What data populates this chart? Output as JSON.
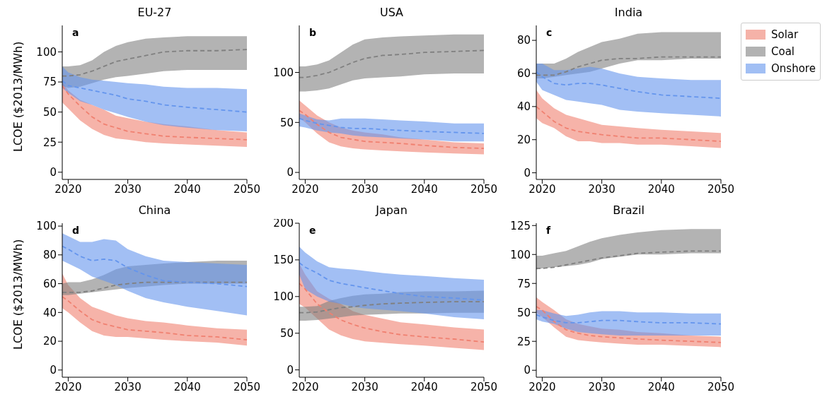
{
  "chart_data": [
    {
      "type": "line",
      "title": "EU-27",
      "ylabel": "LCOE ($2013/MWh)",
      "annotations": [
        "a"
      ],
      "line_style": "dashed",
      "x": [
        2019,
        2020,
        2022,
        2024,
        2026,
        2028,
        2030,
        2033,
        2036,
        2040,
        2045,
        2050
      ],
      "xlim": [
        2019,
        2050
      ],
      "xticks": [
        2020,
        2030,
        2040,
        2050
      ],
      "ylim": [
        -6,
        122
      ],
      "yticks": [
        0,
        25,
        50,
        75,
        100
      ],
      "series": [
        {
          "color": "#f08070",
          "values": [
            72,
            65,
            55,
            46,
            40,
            37,
            34,
            32,
            30,
            29,
            28,
            27
          ],
          "lower": [
            58,
            53,
            43,
            36,
            31,
            28,
            27,
            25,
            24,
            23,
            22,
            21
          ],
          "upper": [
            75,
            68,
            60,
            56,
            52,
            47,
            45,
            42,
            40,
            38,
            35,
            33
          ]
        },
        {
          "color": "#808080",
          "values": [
            80,
            80,
            81,
            84,
            88,
            92,
            94,
            97,
            100,
            101,
            101,
            102
          ],
          "lower": [
            72,
            70,
            71,
            74,
            77,
            79,
            80,
            82,
            84,
            85,
            85,
            85
          ],
          "upper": [
            88,
            88,
            89,
            93,
            100,
            105,
            108,
            111,
            112,
            113,
            113,
            113
          ]
        },
        {
          "color": "#6495ed",
          "values": [
            76,
            72,
            70,
            68,
            66,
            64,
            61,
            59,
            56,
            54,
            52,
            50
          ],
          "lower": [
            70,
            66,
            59,
            56,
            52,
            49,
            46,
            42,
            39,
            37,
            35,
            34
          ],
          "upper": [
            88,
            83,
            79,
            77,
            76,
            75,
            74,
            73,
            71,
            70,
            70,
            69
          ]
        }
      ]
    },
    {
      "type": "line",
      "title": "USA",
      "annotations": [
        "b"
      ],
      "line_style": "dashed",
      "x": [
        2019,
        2020,
        2022,
        2024,
        2026,
        2028,
        2030,
        2033,
        2036,
        2040,
        2045,
        2050
      ],
      "xlim": [
        2019,
        2050
      ],
      "xticks": [
        2020,
        2030,
        2040,
        2050
      ],
      "ylim": [
        -7,
        147
      ],
      "yticks": [
        0,
        50,
        100
      ],
      "series": [
        {
          "color": "#f08070",
          "values": [
            62,
            58,
            48,
            40,
            35,
            33,
            31,
            30,
            29,
            27,
            25,
            24
          ],
          "lower": [
            55,
            50,
            39,
            30,
            26,
            24,
            23,
            22,
            21,
            20,
            19,
            18
          ],
          "upper": [
            72,
            67,
            57,
            50,
            45,
            42,
            40,
            38,
            35,
            33,
            30,
            29
          ]
        },
        {
          "color": "#808080",
          "values": [
            95,
            95,
            97,
            100,
            105,
            110,
            114,
            117,
            118,
            120,
            121,
            122
          ],
          "lower": [
            81,
            81,
            82,
            84,
            88,
            92,
            94,
            95,
            96,
            98,
            99,
            99
          ],
          "upper": [
            106,
            106,
            108,
            112,
            120,
            128,
            133,
            135,
            136,
            137,
            138,
            138
          ]
        },
        {
          "color": "#6495ed",
          "values": [
            54,
            52,
            49,
            47,
            45,
            44,
            44,
            43,
            42,
            41,
            40,
            39
          ],
          "lower": [
            46,
            45,
            42,
            40,
            39,
            37,
            36,
            35,
            34,
            33,
            31,
            31
          ],
          "upper": [
            59,
            57,
            53,
            52,
            54,
            54,
            54,
            53,
            52,
            51,
            49,
            49
          ]
        }
      ]
    },
    {
      "type": "line",
      "title": "India",
      "annotations": [
        "c"
      ],
      "line_style": "dashed",
      "legend": "top right",
      "x": [
        2019,
        2020,
        2022,
        2024,
        2026,
        2028,
        2030,
        2033,
        2036,
        2040,
        2045,
        2050
      ],
      "xlim": [
        2019,
        2050
      ],
      "xticks": [
        2020,
        2030,
        2040,
        2050
      ],
      "ylim": [
        -4,
        89
      ],
      "yticks": [
        0,
        20,
        40,
        60,
        80
      ],
      "series": [
        {
          "name": "Solar",
          "color": "#f08070",
          "values": [
            40,
            37,
            31,
            27,
            25,
            24,
            23,
            22,
            21,
            21,
            20,
            19
          ],
          "lower": [
            33,
            30,
            27,
            22,
            19,
            19,
            18,
            18,
            17,
            17,
            16,
            15
          ],
          "upper": [
            50,
            45,
            39,
            35,
            33,
            31,
            29,
            28,
            27,
            26,
            25,
            24
          ]
        },
        {
          "name": "Coal",
          "color": "#808080",
          "values": [
            59,
            59,
            59,
            61,
            64,
            66,
            68,
            69,
            69,
            70,
            70,
            70
          ],
          "lower": [
            57,
            57,
            58,
            59,
            60,
            61,
            63,
            66,
            68,
            68,
            69,
            69
          ],
          "upper": [
            66,
            66,
            66,
            69,
            73,
            76,
            79,
            81,
            84,
            85,
            85,
            85
          ]
        },
        {
          "name": "Onshore",
          "color": "#6495ed",
          "values": [
            61,
            58,
            54,
            53,
            54,
            54,
            53,
            51,
            49,
            47,
            46,
            45
          ],
          "lower": [
            55,
            50,
            47,
            44,
            43,
            42,
            41,
            38,
            37,
            36,
            35,
            34
          ],
          "upper": [
            66,
            66,
            62,
            62,
            63,
            64,
            63,
            60,
            58,
            57,
            56,
            56
          ]
        }
      ]
    },
    {
      "type": "line",
      "title": "China",
      "ylabel": "LCOE ($2013/MWh)",
      "annotations": [
        "d"
      ],
      "line_style": "dashed",
      "x": [
        2019,
        2020,
        2022,
        2024,
        2026,
        2028,
        2030,
        2033,
        2036,
        2040,
        2045,
        2050
      ],
      "xlim": [
        2019,
        2050
      ],
      "xticks": [
        2020,
        2030,
        2040,
        2050
      ],
      "ylim": [
        -5,
        102
      ],
      "yticks": [
        0,
        20,
        40,
        60,
        80,
        100
      ],
      "series": [
        {
          "color": "#f08070",
          "values": [
            51,
            48,
            41,
            35,
            32,
            30,
            28,
            27,
            26,
            24,
            23,
            21
          ],
          "lower": [
            43,
            40,
            33,
            27,
            24,
            23,
            23,
            22,
            21,
            20,
            19,
            17
          ],
          "upper": [
            67,
            59,
            50,
            44,
            41,
            38,
            36,
            34,
            33,
            31,
            29,
            28
          ]
        },
        {
          "color": "#808080",
          "values": [
            54,
            54,
            54,
            55,
            57,
            59,
            60,
            61,
            61,
            61,
            61,
            61
          ],
          "lower": [
            52,
            52,
            53,
            54,
            55,
            56,
            57,
            58,
            59,
            60,
            60,
            60
          ],
          "upper": [
            60,
            61,
            61,
            63,
            66,
            70,
            72,
            73,
            74,
            75,
            76,
            76
          ]
        },
        {
          "color": "#6495ed",
          "values": [
            86,
            84,
            79,
            76,
            77,
            76,
            71,
            66,
            62,
            61,
            60,
            58
          ],
          "lower": [
            76,
            74,
            70,
            65,
            62,
            59,
            55,
            50,
            47,
            44,
            41,
            38
          ],
          "upper": [
            95,
            93,
            89,
            89,
            91,
            90,
            84,
            79,
            76,
            75,
            74,
            73
          ]
        }
      ]
    },
    {
      "type": "line",
      "title": "Japan",
      "annotations": [
        "e"
      ],
      "line_style": "dashed",
      "x": [
        2019,
        2020,
        2022,
        2024,
        2026,
        2028,
        2030,
        2033,
        2036,
        2040,
        2045,
        2050
      ],
      "xlim": [
        2019,
        2050
      ],
      "xticks": [
        2020,
        2030,
        2040,
        2050
      ],
      "ylim": [
        -10,
        200
      ],
      "yticks": [
        0,
        50,
        100,
        150,
        200
      ],
      "series": [
        {
          "color": "#f08070",
          "values": [
            118,
            110,
            90,
            78,
            68,
            62,
            57,
            52,
            48,
            45,
            42,
            38
          ],
          "lower": [
            90,
            85,
            70,
            55,
            47,
            42,
            39,
            37,
            35,
            33,
            30,
            27
          ],
          "upper": [
            145,
            130,
            107,
            97,
            90,
            80,
            75,
            70,
            65,
            62,
            58,
            55
          ]
        },
        {
          "color": "#808080",
          "values": [
            78,
            78,
            79,
            82,
            85,
            86,
            88,
            90,
            91,
            92,
            93,
            93
          ],
          "lower": [
            67,
            67,
            68,
            70,
            72,
            74,
            75,
            76,
            77,
            77,
            78,
            78
          ],
          "upper": [
            86,
            86,
            87,
            94,
            98,
            101,
            103,
            104,
            106,
            107,
            107,
            108
          ]
        },
        {
          "color": "#6495ed",
          "values": [
            146,
            140,
            132,
            122,
            118,
            115,
            112,
            108,
            104,
            100,
            98,
            95
          ],
          "lower": [
            130,
            110,
            100,
            93,
            90,
            86,
            84,
            82,
            80,
            77,
            72,
            69
          ],
          "upper": [
            168,
            160,
            148,
            140,
            138,
            137,
            135,
            132,
            130,
            128,
            125,
            123
          ]
        }
      ]
    },
    {
      "type": "line",
      "title": "Brazil",
      "annotations": [
        "f"
      ],
      "line_style": "dashed",
      "x": [
        2019,
        2020,
        2022,
        2024,
        2026,
        2028,
        2030,
        2033,
        2036,
        2040,
        2045,
        2050
      ],
      "xlim": [
        2019,
        2050
      ],
      "xticks": [
        2020,
        2030,
        2040,
        2050
      ],
      "ylim": [
        -6,
        127
      ],
      "yticks": [
        0,
        25,
        50,
        75,
        100,
        125
      ],
      "series": [
        {
          "color": "#f08070",
          "values": [
            55,
            52,
            42,
            35,
            32,
            30,
            29,
            28,
            27,
            26,
            25,
            24
          ],
          "lower": [
            50,
            46,
            37,
            29,
            26,
            25,
            24,
            23,
            22,
            22,
            21,
            20
          ],
          "upper": [
            63,
            59,
            52,
            44,
            40,
            38,
            36,
            35,
            33,
            32,
            30,
            29
          ]
        },
        {
          "color": "#808080",
          "values": [
            88,
            88,
            89,
            91,
            93,
            95,
            97,
            99,
            101,
            102,
            103,
            103
          ],
          "lower": [
            87,
            88,
            89,
            90,
            91,
            93,
            96,
            98,
            100,
            100,
            101,
            101
          ],
          "upper": [
            99,
            99,
            101,
            103,
            107,
            111,
            114,
            117,
            119,
            121,
            122,
            122
          ]
        },
        {
          "color": "#6495ed",
          "values": [
            48,
            46,
            43,
            41,
            41,
            42,
            43,
            43,
            42,
            41,
            41,
            40
          ],
          "lower": [
            44,
            42,
            40,
            36,
            33,
            32,
            31,
            30,
            30,
            30,
            30,
            30
          ],
          "upper": [
            52,
            52,
            49,
            47,
            48,
            50,
            51,
            51,
            50,
            50,
            49,
            49
          ]
        }
      ]
    }
  ]
}
